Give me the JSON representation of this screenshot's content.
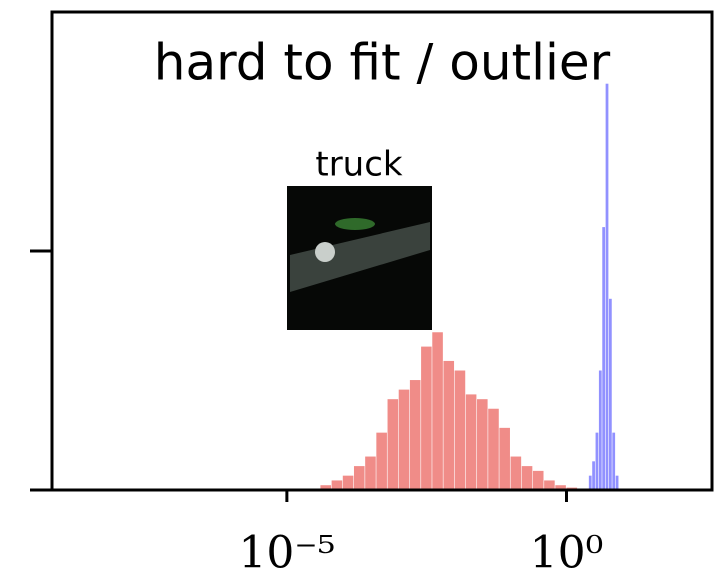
{
  "chart_data": {
    "type": "histogram",
    "title": "hard to fit / outlier",
    "xscale": "log",
    "xlim": [
      6.31e-10,
      400
    ],
    "xticks": [
      {
        "value": 1e-05,
        "label": "10⁻⁵"
      },
      {
        "value": 1,
        "label": "10⁰"
      }
    ],
    "ylim": [
      0,
      1
    ],
    "yticks": [
      0,
      0.5
    ],
    "inset_label": "truck",
    "series": [
      {
        "color": "#ee7f7b",
        "bins": [
          3.98e-05,
          6.31e-05,
          0.0001,
          0.0001585,
          0.0002512,
          0.0003981,
          0.000631,
          0.001,
          0.001585,
          0.002512,
          0.003981,
          0.00631,
          0.01,
          0.01585,
          0.02512,
          0.03981,
          0.0631,
          0.1,
          0.1585,
          0.2512,
          0.3981,
          0.631,
          1,
          1.585
        ],
        "values": [
          0.01,
          0.02,
          0.03,
          0.05,
          0.07,
          0.12,
          0.19,
          0.21,
          0.23,
          0.3,
          0.33,
          0.27,
          0.25,
          0.2,
          0.19,
          0.17,
          0.13,
          0.07,
          0.05,
          0.04,
          0.02,
          0.01,
          0.005
        ]
      },
      {
        "color": "#8585ff",
        "bins": [
          2.512,
          2.884,
          3.311,
          3.802,
          4.365,
          5.012,
          5.754,
          6.607,
          7.586,
          8.71
        ],
        "values": [
          0.03,
          0.06,
          0.12,
          0.25,
          0.55,
          0.85,
          0.4,
          0.12,
          0.03
        ]
      }
    ]
  }
}
